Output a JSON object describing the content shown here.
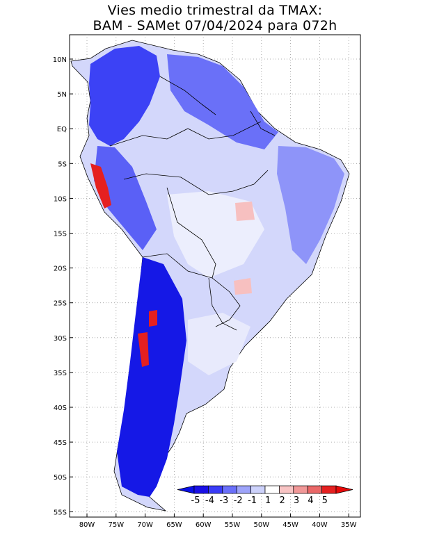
{
  "title": {
    "line1": "Vies medio trimestral da TMAX:",
    "line2": "BAM - SAMet 07/04/2024  para 072h"
  },
  "map": {
    "lat_labels": [
      "10N",
      "5N",
      "EQ",
      "5S",
      "10S",
      "15S",
      "20S",
      "25S",
      "30S",
      "35S",
      "40S",
      "45S",
      "50S",
      "55S"
    ],
    "lon_labels": [
      "80W",
      "75W",
      "70W",
      "65W",
      "60W",
      "55W",
      "50W",
      "45W",
      "40W",
      "35W"
    ],
    "land_color": "#d3d7fb",
    "ocean_color": "#ffffff",
    "grid": true
  },
  "colorbar": {
    "labels": [
      "-5",
      "-4",
      "-3",
      "-2",
      "-1",
      "1",
      "2",
      "3",
      "4",
      "5"
    ],
    "colors": [
      "#1a10e6",
      "#3a3cf8",
      "#6a70fa",
      "#9ea4fa",
      "#cdd2fb",
      "#ffffff",
      "#f8c4c4",
      "#f19898",
      "#ea6868",
      "#e52020"
    ],
    "arrow_low": "#0a10e8",
    "arrow_high": "#e80808"
  }
}
